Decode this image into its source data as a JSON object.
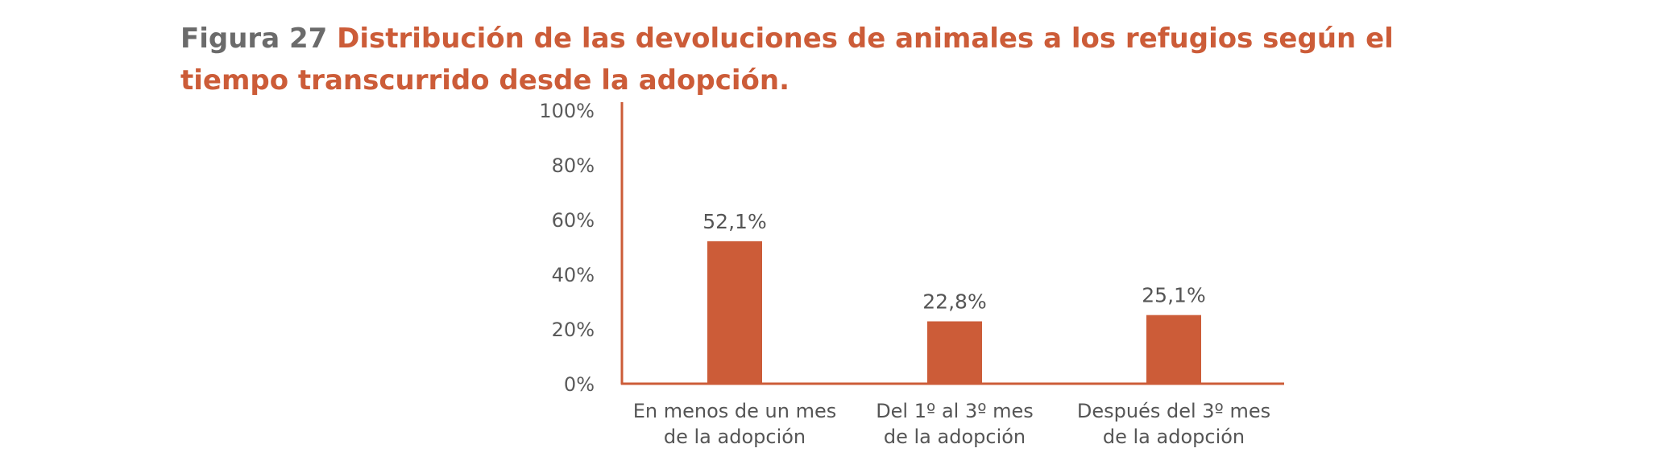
{
  "figure": {
    "number": "Figura 27",
    "title": "Distribución de las devoluciones de animales a los refugios según el tiempo transcurrido desde la adopción."
  },
  "colors": {
    "accent": "#cc5c38",
    "muted": "#6b6b6b"
  },
  "chart_data": {
    "type": "bar",
    "title": "Distribución de las devoluciones de animales a los refugios según el tiempo transcurrido desde la adopción.",
    "categories": [
      [
        "En menos de un mes",
        "de la adopción"
      ],
      [
        "Del 1º al 3º mes",
        "de la adopción"
      ],
      [
        "Después del 3º mes",
        "de la adopción"
      ]
    ],
    "values": [
      52.1,
      22.8,
      25.1
    ],
    "value_labels": [
      "52,1%",
      "22,8%",
      "25,1%"
    ],
    "xlabel": "",
    "ylabel": "",
    "ylim": [
      0,
      100
    ],
    "yticks": [
      0,
      20,
      40,
      60,
      80,
      100
    ],
    "ytick_labels": [
      "0%",
      "20%",
      "40%",
      "60%",
      "80%",
      "100%"
    ],
    "grid": false,
    "legend": "none"
  }
}
